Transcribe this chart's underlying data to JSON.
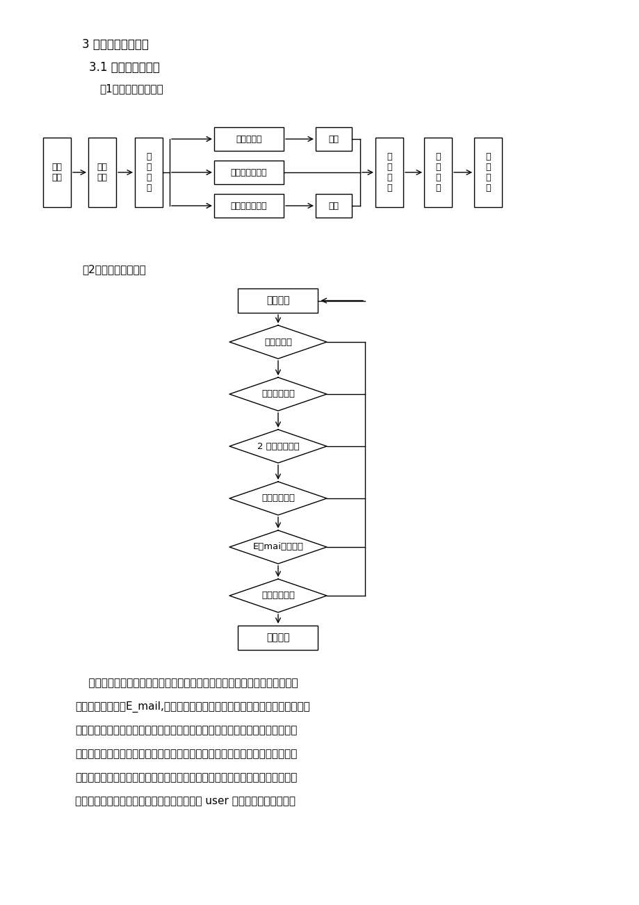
{
  "bg_color": "#ffffff",
  "title1": "3 系统数据库的设计",
  "title2": "3.1 概念结构的设计",
  "title3": "（1）前台购物流程：",
  "title4": "（2）注册功能流程：",
  "paragraph_lines": [
    "    点击主页面的用户注册选项后，会弹出一个注册信息页面，用户需要如实填",
    "写用户名，密码，E_mail,地址，电话，真实，姓名等各项信息，提交后，系统",
    "进行检测判断该用户名是否已经注册过，如果已经存在则弹出新页面，提示用户",
    "该用户名已经注册过，如果没有则进行下一步判断，用户输入的两次密码是否一",
    "致，然后依次往后判断用户所填写的各项信息是否符合要求，直到所有信息均正",
    "确无误，系统将该用户注册信息写入会员表即 user 并提示用户注册成功。"
  ],
  "flow1_left_labels": [
    "浏览\n商品",
    "选择\n商品",
    "订\n购\n商\n品"
  ],
  "flow1_mid_labels": [
    "未注册用户",
    "已登录注册用户",
    "未登录注册用户"
  ],
  "flow1_action_labels": [
    "注册",
    "登录"
  ],
  "flow1_right_labels": [
    "去\n购\n物\n车",
    "去\n收\n銀\n台",
    "提\n交\n订\n单"
  ],
  "flow2_rect_labels": [
    "注册入口",
    "注册成功"
  ],
  "flow2_diamond_labels": [
    "必选项为空",
    "用户名有效？",
    "2 次输入密码是",
    "密码长度符合",
    "E－mai地址有效",
    "其他信息有效"
  ]
}
